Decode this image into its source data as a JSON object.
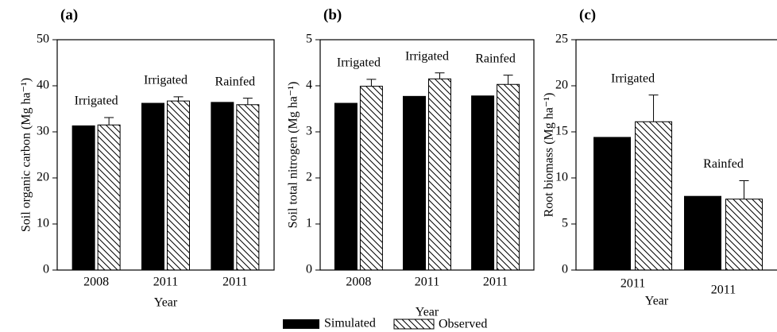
{
  "legend": [
    "Simulated",
    "Observed"
  ],
  "xlabel": "Year",
  "chart_data": [
    {
      "type": "bar",
      "title": "(a)",
      "ylabel": "Soil organic carbon (Mg ha⁻¹)",
      "categories": [
        "2008",
        "2011",
        "2011"
      ],
      "annotations": [
        "Irrigated",
        "Irrigated",
        "Rainfed"
      ],
      "ylim": [
        0,
        50
      ],
      "yticks": [
        0,
        10,
        20,
        30,
        40,
        50
      ],
      "series": [
        {
          "style": "solid",
          "color": "#000000",
          "values": [
            31.3,
            36.2,
            36.4
          ]
        },
        {
          "style": "hatched",
          "color": "#000000",
          "values": [
            31.5,
            36.7,
            35.9
          ],
          "errors": [
            1.6,
            0.9,
            1.4
          ]
        }
      ]
    },
    {
      "type": "bar",
      "title": "(b)",
      "ylabel": "Soil total nitrogen (Mg ha⁻¹)",
      "categories": [
        "2008",
        "2011",
        "2011"
      ],
      "annotations": [
        "Irrigated",
        "Irrigated",
        "Rainfed"
      ],
      "ylim": [
        0,
        5
      ],
      "yticks": [
        0,
        1,
        2,
        3,
        4,
        5
      ],
      "series": [
        {
          "style": "solid",
          "color": "#000000",
          "values": [
            3.62,
            3.77,
            3.78
          ]
        },
        {
          "style": "hatched",
          "color": "#000000",
          "values": [
            3.99,
            4.15,
            4.03
          ],
          "errors": [
            0.15,
            0.13,
            0.2
          ]
        }
      ]
    },
    {
      "type": "bar",
      "title": "(c)",
      "ylabel": "Root biomass (Mg ha⁻¹)",
      "categories": [
        "2011",
        "2011"
      ],
      "annotations": [
        "Irrigated",
        "Rainfed"
      ],
      "ylim": [
        0,
        25
      ],
      "yticks": [
        0,
        5,
        10,
        15,
        20,
        25
      ],
      "series": [
        {
          "style": "solid",
          "color": "#000000",
          "values": [
            14.4,
            8.0
          ]
        },
        {
          "style": "hatched",
          "color": "#000000",
          "values": [
            16.1,
            7.7
          ],
          "errors": [
            2.9,
            2.0
          ]
        }
      ]
    }
  ]
}
